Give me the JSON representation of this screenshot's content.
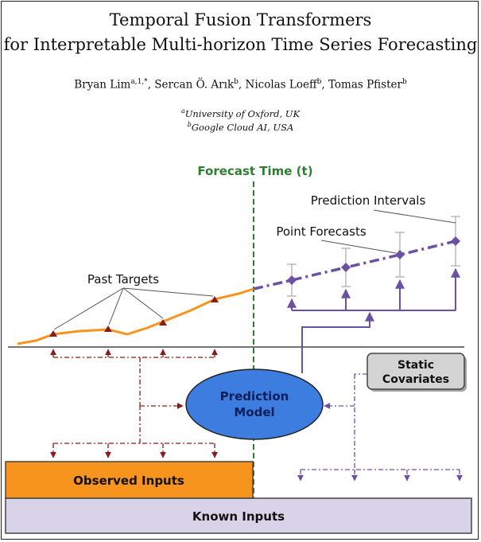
{
  "paper": {
    "title_line1": "Temporal Fusion Transformers",
    "title_line2": "for Interpretable Multi-horizon Time Series Forecasting",
    "authors": [
      {
        "name": "Bryan Lim",
        "sup": "a,1,*",
        "sep": ", "
      },
      {
        "name": "Sercan Ö. Arık",
        "sup": "b",
        "sep": ", "
      },
      {
        "name": "Nicolas Loeff",
        "sup": "b",
        "sep": ", "
      },
      {
        "name": "Tomas Pfister",
        "sup": "b",
        "sep": ""
      }
    ],
    "affiliations": [
      {
        "mark": "a",
        "text": "University of Oxford, UK"
      },
      {
        "mark": "b",
        "text": "Google Cloud AI, USA"
      }
    ]
  },
  "figure": {
    "forecast_time_label": "Forecast Time (t)",
    "prediction_intervals_label": "Prediction Intervals",
    "point_forecasts_label": "Point Forecasts",
    "past_targets_label": "Past Targets",
    "model_label_line1": "Prediction",
    "model_label_line2": "Model",
    "static_label_line1": "Static",
    "static_label_line2": "Covariates",
    "observed_inputs_label": "Observed Inputs",
    "known_inputs_label": "Known Inputs",
    "colors": {
      "orange": "#f7941d",
      "purple": "#6a51a3",
      "dark_red": "#8b1a1a",
      "model_fill": "#3d7de0",
      "model_text": "#0b1f5c",
      "forecast_line": "#2e7d32",
      "gray_box": "#d0d0d0",
      "known_fill": "#d8d3e8"
    }
  }
}
